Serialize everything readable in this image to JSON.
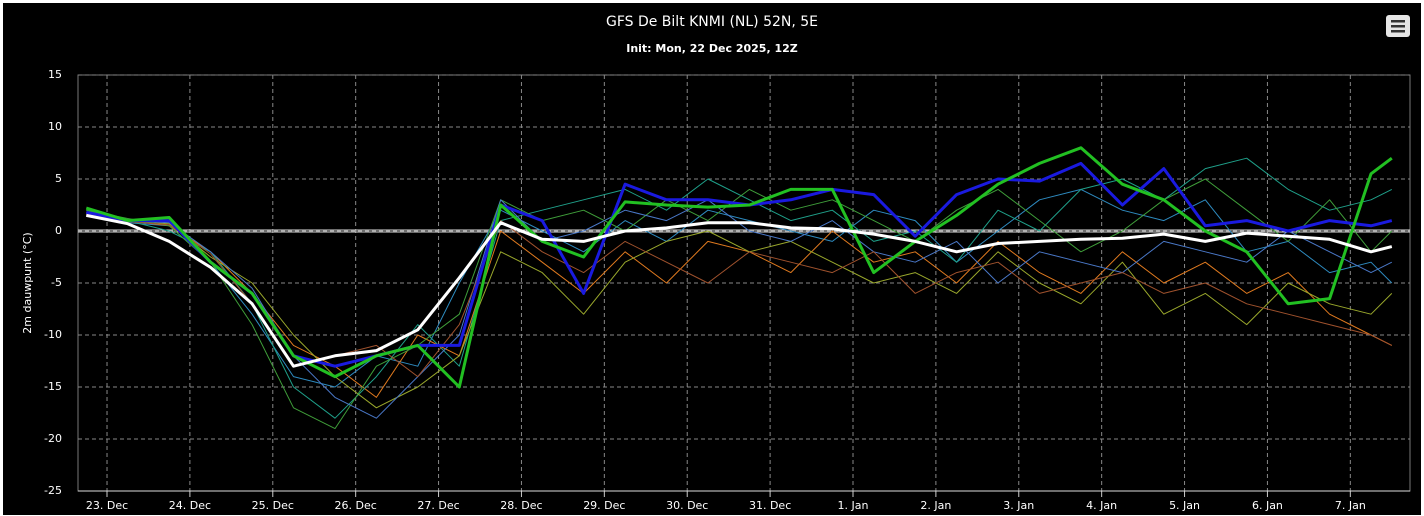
{
  "chart_data": {
    "type": "line",
    "title": "GFS De Bilt KNMI (NL) 52N, 5E",
    "subtitle": "Init: Mon, 22 Dec 2025, 12Z",
    "y_axis_label": "2m dauwpunt (°C)",
    "xlim": [
      -0.35,
      15.72
    ],
    "xticks": [
      {
        "value": 0,
        "label": "23. Dec"
      },
      {
        "value": 1,
        "label": "24. Dec"
      },
      {
        "value": 2,
        "label": "25. Dec"
      },
      {
        "value": 3,
        "label": "26. Dec"
      },
      {
        "value": 4,
        "label": "27. Dec"
      },
      {
        "value": 5,
        "label": "28. Dec"
      },
      {
        "value": 6,
        "label": "29. Dec"
      },
      {
        "value": 7,
        "label": "30. Dec"
      },
      {
        "value": 8,
        "label": "31. Dec"
      },
      {
        "value": 9,
        "label": "1. Jan"
      },
      {
        "value": 10,
        "label": "2. Jan"
      },
      {
        "value": 11,
        "label": "3. Jan"
      },
      {
        "value": 12,
        "label": "4. Jan"
      },
      {
        "value": 13,
        "label": "5. Jan"
      },
      {
        "value": 14,
        "label": "6. Jan"
      },
      {
        "value": 15,
        "label": "7. Jan"
      }
    ],
    "ylim": [
      -25,
      15
    ],
    "yticks": [
      -25,
      -20,
      -15,
      -10,
      -5,
      0,
      5,
      10,
      15
    ],
    "grid": true,
    "x": [
      -0.25,
      0.25,
      0.75,
      1.25,
      1.75,
      2.25,
      2.75,
      3.25,
      3.75,
      4.25,
      4.75,
      5.25,
      5.75,
      6.25,
      6.75,
      7.25,
      7.75,
      8.25,
      8.75,
      9.25,
      9.75,
      10.25,
      10.75,
      11.25,
      11.75,
      12.25,
      12.75,
      13.25,
      13.75,
      14.25,
      14.75,
      15.25,
      15.5
    ],
    "series": [
      {
        "color": "#2e8bc0",
        "line_width": 1,
        "values": [
          1.5,
          0.8,
          0.5,
          -3,
          -8,
          -14,
          -15,
          -12,
          -13,
          -5,
          2,
          0,
          -2,
          1,
          -1,
          2,
          1,
          0,
          -1,
          2,
          1,
          -3,
          0,
          3,
          4,
          2,
          1,
          3,
          -2,
          -1,
          -4,
          -3,
          -5
        ]
      },
      {
        "color": "#e07a1f",
        "line_width": 1,
        "values": [
          1.8,
          1,
          0.5,
          -2,
          -6,
          -11,
          -13,
          -16,
          -10,
          -12,
          0,
          -3,
          -6,
          -2,
          -5,
          -1,
          -2,
          -4,
          0,
          -3,
          -2,
          -5,
          -1,
          -4,
          -6,
          -2,
          -5,
          -3,
          -6,
          -4,
          -8,
          -10,
          -11
        ]
      },
      {
        "color": "#1fa08a",
        "line_width": 1,
        "values": [
          2,
          1,
          0,
          -2,
          -7,
          -15,
          -18,
          -14,
          -9,
          -13,
          1,
          2,
          3,
          4,
          2,
          5,
          3,
          1,
          2,
          -1,
          0,
          -3,
          2,
          0,
          4,
          5,
          3,
          6,
          7,
          4,
          2,
          3,
          4
        ]
      },
      {
        "color": "#9aa82c",
        "line_width": 1,
        "values": [
          1.5,
          0.9,
          0.7,
          -2.5,
          -5,
          -10,
          -14,
          -17,
          -15,
          -12,
          -2,
          -4,
          -8,
          -3,
          -1,
          0,
          -2,
          -1,
          -3,
          -5,
          -4,
          -6,
          -2,
          -5,
          -7,
          -3,
          -8,
          -6,
          -9,
          -5,
          -7,
          -8,
          -6
        ]
      },
      {
        "color": "#3f9e3a",
        "line_width": 1,
        "values": [
          2,
          1.2,
          0.5,
          -3,
          -9,
          -17,
          -19,
          -13,
          -11,
          -8,
          3,
          1,
          2,
          0,
          3,
          1,
          4,
          2,
          3,
          1,
          -1,
          2,
          4,
          1,
          -2,
          0,
          3,
          5,
          2,
          -1,
          3,
          -2,
          0
        ]
      },
      {
        "color": "#4a78c8",
        "line_width": 1,
        "values": [
          1.7,
          1,
          0.8,
          -2,
          -5.5,
          -12,
          -16,
          -18,
          -14,
          -10,
          3,
          -1,
          0,
          2,
          1,
          3,
          0,
          -1,
          1,
          -2,
          -3,
          -1,
          -5,
          -2,
          -3,
          -4,
          -1,
          -2,
          -3,
          0,
          -2,
          -4,
          -3
        ]
      },
      {
        "color": "#a0522d",
        "line_width": 1,
        "values": [
          1.6,
          0.9,
          0.6,
          -2.2,
          -7,
          -13,
          -12,
          -11,
          -14,
          -9,
          1,
          -2,
          -4,
          -1,
          -3,
          -5,
          -2,
          -3,
          -4,
          -2,
          -6,
          -4,
          -3,
          -6,
          -5,
          -4,
          -6,
          -5,
          -7,
          -8,
          -9,
          -10,
          -11
        ]
      },
      {
        "color": "#1a1adf",
        "line_width": 3,
        "values": [
          1.8,
          1,
          1,
          -3,
          -6,
          -12,
          -13,
          -12,
          -11,
          -11,
          2.5,
          1,
          -6,
          4.5,
          3,
          3,
          2.5,
          3,
          4,
          3.5,
          -0.5,
          3.5,
          5,
          4.8,
          6.5,
          2.5,
          6,
          0.5,
          1,
          0,
          1,
          0.5,
          1
        ]
      },
      {
        "color": "#22c022",
        "line_width": 3,
        "values": [
          2.2,
          1,
          1.3,
          -3,
          -6,
          -12,
          -14,
          -12,
          -11,
          -15,
          2.5,
          -1,
          -2.5,
          2.8,
          2.5,
          2.3,
          2.5,
          4,
          4,
          -4,
          -1,
          1.5,
          4.5,
          6.5,
          8,
          4.5,
          3,
          0,
          -2,
          -7,
          -6.5,
          5.5,
          7
        ]
      },
      {
        "color": "#ffffff",
        "line_width": 3,
        "values": [
          1.5,
          0.7,
          -1,
          -3.5,
          -7,
          -13,
          -12,
          -11.5,
          -9.5,
          -4.5,
          0.8,
          -0.8,
          -1,
          0,
          0.3,
          0.8,
          0.8,
          0.3,
          0.2,
          -0.3,
          -1,
          -2,
          -1.2,
          -1,
          -0.8,
          -0.7,
          -0.3,
          -1,
          -0.2,
          -0.5,
          -0.8,
          -2,
          -1.5
        ]
      }
    ]
  }
}
